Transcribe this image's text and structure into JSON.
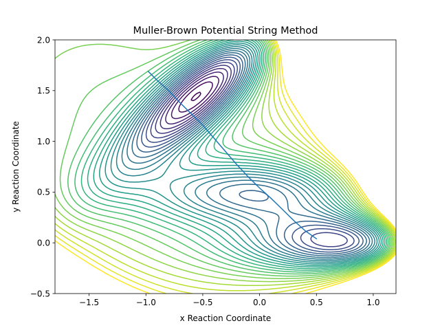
{
  "chart_data": {
    "type": "contour",
    "title": "Muller-Brown Potential String Method",
    "xlabel": "x Reaction Coordinate",
    "ylabel": "y Reaction Coordinate",
    "xlim": [
      -1.8,
      1.2
    ],
    "ylim": [
      -0.5,
      2.0
    ],
    "xticks": [
      -1.5,
      -1.0,
      -0.5,
      0.0,
      0.5,
      1.0
    ],
    "yticks": [
      -0.5,
      0.0,
      0.5,
      1.0,
      1.5,
      2.0
    ],
    "xtick_labels": [
      "−1.5",
      "−1.0",
      "−0.5",
      "0.0",
      "0.5",
      "1.0"
    ],
    "ytick_labels": [
      "−0.5",
      "0.0",
      "0.5",
      "1.0",
      "1.5",
      "2.0"
    ],
    "grid": false,
    "colormap": "viridis",
    "contour_levels": {
      "min": -146,
      "max": 70,
      "count": 30
    },
    "minima": [
      {
        "x": -0.558,
        "y": 1.442
      },
      {
        "x": -0.05,
        "y": 0.467
      },
      {
        "x": 0.623,
        "y": 0.028
      }
    ],
    "string_path": {
      "color": "#1f77b4",
      "points": [
        {
          "x": -0.98,
          "y": 1.69
        },
        {
          "x": -0.9,
          "y": 1.6
        },
        {
          "x": -0.8,
          "y": 1.5
        },
        {
          "x": -0.7,
          "y": 1.38
        },
        {
          "x": -0.6,
          "y": 1.27
        },
        {
          "x": -0.5,
          "y": 1.16
        },
        {
          "x": -0.4,
          "y": 1.03
        },
        {
          "x": -0.3,
          "y": 0.9
        },
        {
          "x": -0.2,
          "y": 0.77
        },
        {
          "x": -0.1,
          "y": 0.65
        },
        {
          "x": 0.0,
          "y": 0.54
        },
        {
          "x": 0.1,
          "y": 0.44
        },
        {
          "x": 0.2,
          "y": 0.33
        },
        {
          "x": 0.3,
          "y": 0.22
        },
        {
          "x": 0.4,
          "y": 0.12
        },
        {
          "x": 0.5,
          "y": 0.04
        }
      ]
    }
  }
}
